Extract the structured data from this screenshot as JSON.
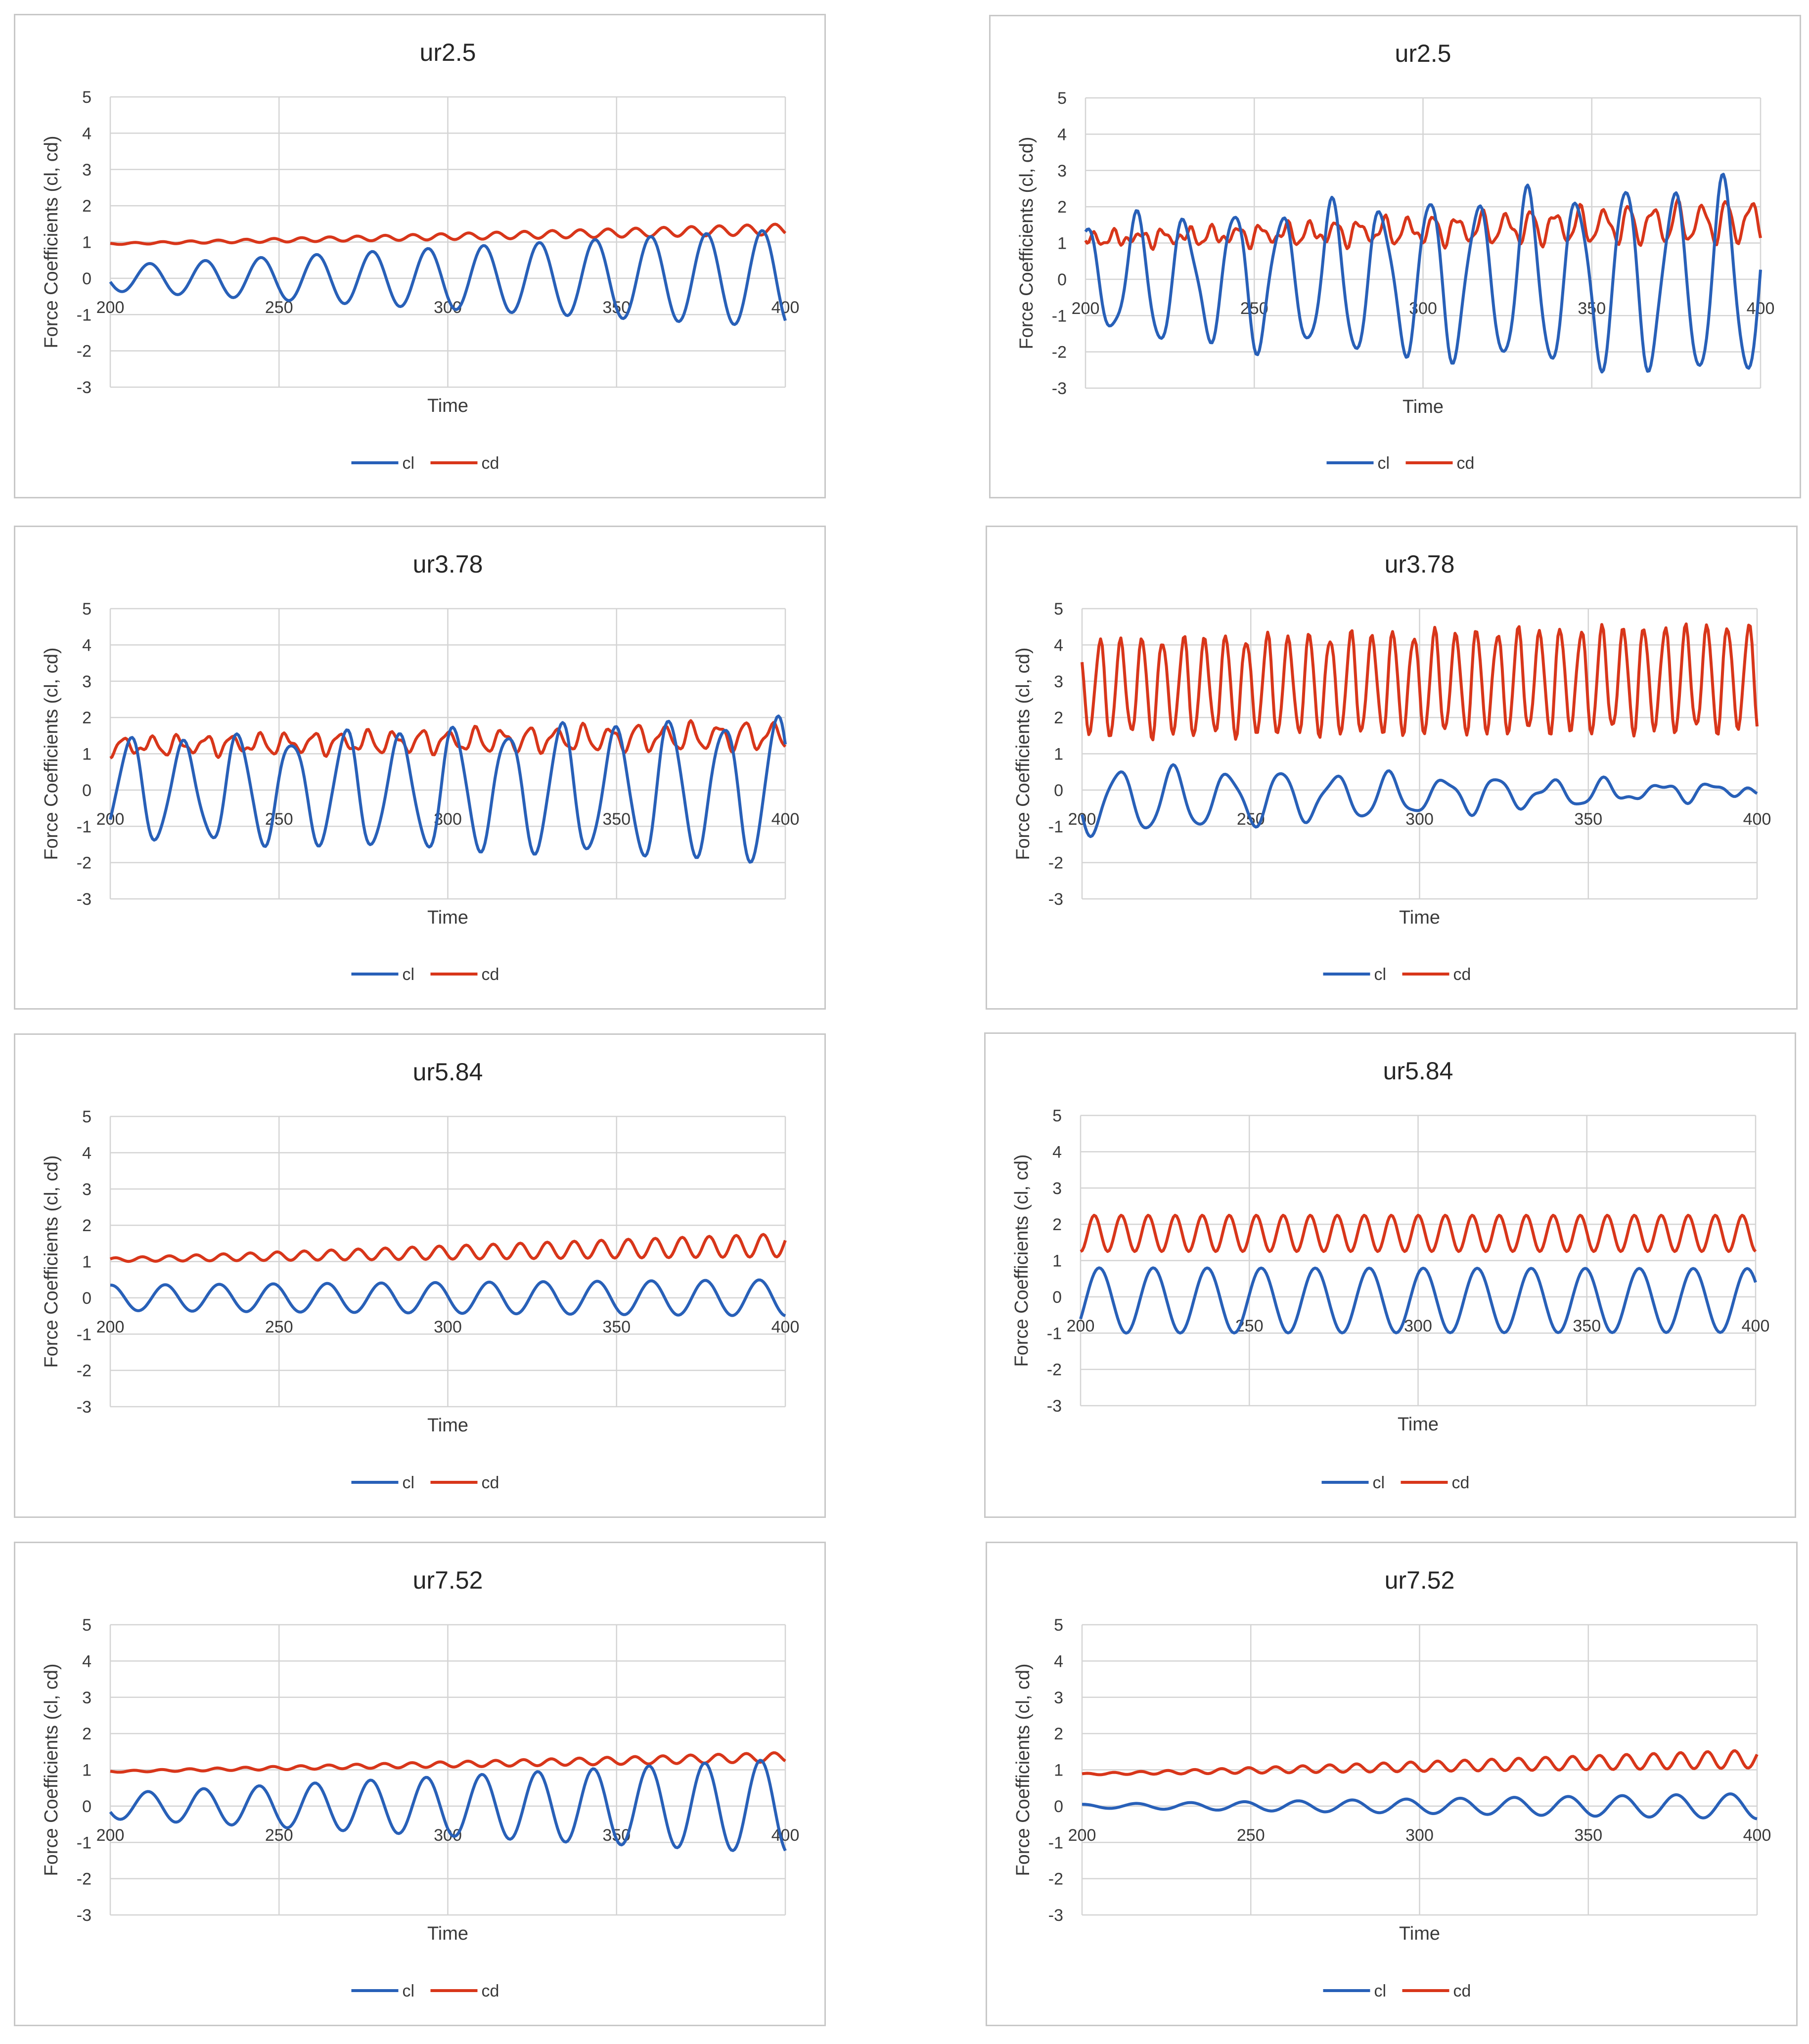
{
  "colors": {
    "cl": "#2860b8",
    "cd": "#d8361a",
    "grid": "#d4d4d4",
    "axis": "#c4c4c4"
  },
  "chart_data": [
    {
      "type": "line",
      "title": "ur2.5",
      "xlabel": "Time",
      "ylabel": "Force Coefficients (cl, cd)",
      "xlim": [
        200,
        400
      ],
      "ylim": [
        -3,
        5
      ],
      "xticks": [
        200,
        250,
        300,
        350,
        400
      ],
      "yticks": [
        5,
        4,
        3,
        2,
        1,
        0,
        -1,
        -2,
        -3
      ],
      "series": [
        {
          "name": "cl",
          "x": [
            200,
            400
          ],
          "mean": 0.0,
          "amp_start": 0.35,
          "amp_end": 1.35,
          "period": 16.5,
          "noise": 0.0,
          "seed": 1
        },
        {
          "name": "cd",
          "x": [
            200,
            400
          ],
          "mean_start": 0.95,
          "mean_end": 1.35,
          "amp_start": 0.02,
          "amp_end": 0.15,
          "period": 8.25,
          "noise": 0.0,
          "seed": 2
        }
      ]
    },
    {
      "type": "line",
      "title": "ur2.5",
      "xlabel": "Time",
      "ylabel": "Force Coefficients (cl, cd)",
      "xlim": [
        200,
        400
      ],
      "ylim": [
        -3,
        5
      ],
      "xticks": [
        200,
        250,
        300,
        350,
        400
      ],
      "yticks": [
        5,
        4,
        3,
        2,
        1,
        0,
        -1,
        -2,
        -3
      ],
      "series": [
        {
          "name": "cl",
          "x": [
            200,
            400
          ],
          "mean": 0.0,
          "amp_start": 1.5,
          "amp_end": 2.6,
          "period": 14.5,
          "noise": 0.7,
          "seed": 3
        },
        {
          "name": "cd",
          "x": [
            200,
            400
          ],
          "mean_start": 1.1,
          "mean_end": 1.6,
          "amp_start": 0.1,
          "amp_end": 0.55,
          "period": 7.25,
          "noise": 0.35,
          "seed": 4
        }
      ]
    },
    {
      "type": "line",
      "title": "ur3.78",
      "xlabel": "Time",
      "ylabel": "Force Coefficients (cl, cd)",
      "xlim": [
        200,
        400
      ],
      "ylim": [
        -3,
        5
      ],
      "xticks": [
        200,
        250,
        300,
        350,
        400
      ],
      "yticks": [
        5,
        4,
        3,
        2,
        1,
        0,
        -1,
        -2,
        -3
      ],
      "series": [
        {
          "name": "cl",
          "x": [
            200,
            400
          ],
          "mean": 0.0,
          "amp_start": 1.3,
          "amp_end": 1.9,
          "period": 16.0,
          "noise": 0.45,
          "seed": 5
        },
        {
          "name": "cd",
          "x": [
            200,
            400
          ],
          "mean_start": 1.2,
          "mean_end": 1.5,
          "amp_start": 0.2,
          "amp_end": 0.35,
          "period": 8.0,
          "noise": 0.25,
          "seed": 6
        }
      ]
    },
    {
      "type": "line",
      "title": "ur3.78",
      "xlabel": "Time",
      "ylabel": "Force Coefficients (cl, cd)",
      "xlim": [
        200,
        400
      ],
      "ylim": [
        -3,
        5
      ],
      "xticks": [
        200,
        250,
        300,
        350,
        400
      ],
      "yticks": [
        5,
        4,
        3,
        2,
        1,
        0,
        -1,
        -2,
        -3
      ],
      "series": [
        {
          "name": "cl",
          "x": [
            200,
            400
          ],
          "mean_start": -0.3,
          "mean_end": 0.0,
          "amp_start": 0.9,
          "amp_end": 0.1,
          "period": 16.0,
          "noise": 0.3,
          "seed": 7
        },
        {
          "name": "cd",
          "x": [
            200,
            400
          ],
          "mean_start": 2.8,
          "mean_end": 3.1,
          "amp_start": 1.3,
          "amp_end": 1.45,
          "period": 6.2,
          "noise": 0.35,
          "seed": 8
        }
      ]
    },
    {
      "type": "line",
      "title": "ur5.84",
      "xlabel": "Time",
      "ylabel": "Force Coefficients (cl, cd)",
      "xlim": [
        200,
        400
      ],
      "ylim": [
        -3,
        5
      ],
      "xticks": [
        200,
        250,
        300,
        350,
        400
      ],
      "yticks": [
        5,
        4,
        3,
        2,
        1,
        0,
        -1,
        -2,
        -3
      ],
      "series": [
        {
          "name": "cl",
          "x": [
            200,
            400
          ],
          "mean": 0.0,
          "amp_start": 0.35,
          "amp_end": 0.5,
          "period": 16.0,
          "noise": 0.0,
          "seed": 9
        },
        {
          "name": "cd",
          "x": [
            200,
            400
          ],
          "mean_start": 1.05,
          "mean_end": 1.45,
          "amp_start": 0.05,
          "amp_end": 0.32,
          "period": 8.0,
          "noise": 0.0,
          "seed": 10
        }
      ]
    },
    {
      "type": "line",
      "title": "ur5.84",
      "xlabel": "Time",
      "ylabel": "Force Coefficients (cl, cd)",
      "xlim": [
        200,
        400
      ],
      "ylim": [
        -3,
        5
      ],
      "xticks": [
        200,
        250,
        300,
        350,
        400
      ],
      "yticks": [
        5,
        4,
        3,
        2,
        1,
        0,
        -1,
        -2,
        -3
      ],
      "series": [
        {
          "name": "cl",
          "x": [
            200,
            400
          ],
          "mean": -0.1,
          "amp_start": 0.9,
          "amp_end": 0.88,
          "period": 16.0,
          "noise": 0.0,
          "seed": 11
        },
        {
          "name": "cd",
          "x": [
            200,
            400
          ],
          "mean_start": 1.75,
          "mean_end": 1.75,
          "amp_start": 0.5,
          "amp_end": 0.5,
          "period": 8.0,
          "noise": 0.0,
          "seed": 12
        }
      ]
    },
    {
      "type": "line",
      "title": "ur7.52",
      "xlabel": "Time",
      "ylabel": "Force Coefficients (cl, cd)",
      "xlim": [
        200,
        400
      ],
      "ylim": [
        -3,
        5
      ],
      "xticks": [
        200,
        250,
        300,
        350,
        400
      ],
      "yticks": [
        5,
        4,
        3,
        2,
        1,
        0,
        -1,
        -2,
        -3
      ],
      "series": [
        {
          "name": "cl",
          "x": [
            200,
            400
          ],
          "mean": 0.0,
          "amp_start": 0.35,
          "amp_end": 1.3,
          "period": 16.5,
          "noise": 0.0,
          "seed": 13
        },
        {
          "name": "cd",
          "x": [
            200,
            400
          ],
          "mean_start": 0.95,
          "mean_end": 1.35,
          "amp_start": 0.02,
          "amp_end": 0.13,
          "period": 8.25,
          "noise": 0.0,
          "seed": 14
        }
      ]
    },
    {
      "type": "line",
      "title": "ur7.52",
      "xlabel": "Time",
      "ylabel": "Force Coefficients (cl, cd)",
      "xlim": [
        200,
        400
      ],
      "ylim": [
        -3,
        5
      ],
      "xticks": [
        200,
        250,
        300,
        350,
        400
      ],
      "yticks": [
        5,
        4,
        3,
        2,
        1,
        0,
        -1,
        -2,
        -3
      ],
      "series": [
        {
          "name": "cl",
          "x": [
            200,
            400
          ],
          "mean": 0.0,
          "amp_start": 0.05,
          "amp_end": 0.35,
          "period": 16.0,
          "noise": 0.0,
          "seed": 15
        },
        {
          "name": "cd",
          "x": [
            200,
            400
          ],
          "mean_start": 0.88,
          "mean_end": 1.3,
          "amp_start": 0.02,
          "amp_end": 0.25,
          "period": 8.0,
          "noise": 0.0,
          "seed": 16
        }
      ]
    }
  ]
}
